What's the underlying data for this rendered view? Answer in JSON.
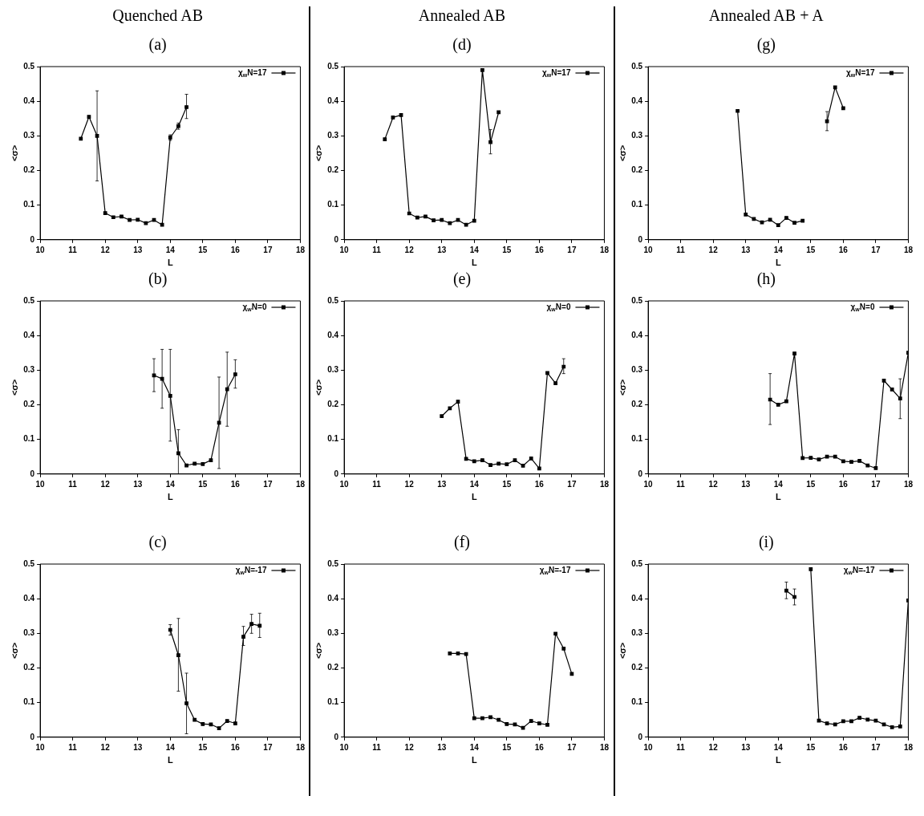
{
  "chart_data": [
    {
      "type": "line",
      "subtitle": "Quenched AB",
      "title": "(a)",
      "xlabel": "L",
      "ylabel": "<σ>",
      "xlim": [
        10,
        18
      ],
      "xticks": [
        10,
        11,
        12,
        13,
        14,
        15,
        16,
        17,
        18
      ],
      "ylim": [
        0,
        0.5
      ],
      "yticks": [
        0,
        0.1,
        0.2,
        0.3,
        0.4,
        0.5
      ],
      "legend": "top right",
      "marker": "square",
      "x": [
        11.25,
        11.5,
        11.75,
        12,
        12.25,
        12.5,
        12.75,
        13,
        13.25,
        13.5,
        13.75,
        14,
        14.25,
        14.5
      ],
      "series": [
        {
          "name": "χ$_{w}$N=17",
          "color": "#000000",
          "values": [
            0.292,
            0.355,
            0.3,
            0.077,
            0.065,
            0.067,
            0.057,
            0.058,
            0.048,
            0.057,
            0.043,
            0.295,
            0.328,
            0.383
          ],
          "errors": [
            null,
            null,
            [
              0.17,
              0.43
            ],
            null,
            null,
            null,
            null,
            null,
            null,
            null,
            null,
            [
              0.287,
              0.303
            ],
            [
              0.319,
              0.337
            ],
            [
              0.35,
              0.42
            ]
          ]
        }
      ]
    },
    {
      "type": "line",
      "title": "(b)",
      "xlabel": "L",
      "ylabel": "<σ>",
      "xlim": [
        10,
        18
      ],
      "xticks": [
        10,
        11,
        12,
        13,
        14,
        15,
        16,
        17,
        18
      ],
      "ylim": [
        0,
        0.5
      ],
      "yticks": [
        0,
        0.1,
        0.2,
        0.3,
        0.4,
        0.5
      ],
      "legend": "top right",
      "marker": "square",
      "x": [
        13.5,
        13.75,
        14,
        14.25,
        14.5,
        14.75,
        15,
        15.25,
        15.5,
        15.75,
        16
      ],
      "series": [
        {
          "name": "χ$_{w}$N=0",
          "color": "#000000",
          "values": [
            0.285,
            0.275,
            0.226,
            0.06,
            0.025,
            0.03,
            0.029,
            0.04,
            0.148,
            0.245,
            0.288
          ],
          "errors": [
            [
              0.238,
              0.333
            ],
            [
              0.19,
              0.36
            ],
            [
              0.095,
              0.36
            ],
            [
              0,
              0.128
            ],
            null,
            null,
            null,
            null,
            [
              0.016,
              0.28
            ],
            [
              0.138,
              0.352
            ],
            [
              0.248,
              0.33
            ]
          ]
        }
      ]
    },
    {
      "type": "line",
      "title": "(c)",
      "xlabel": "L",
      "ylabel": "<σ>",
      "xlim": [
        10,
        18
      ],
      "xticks": [
        10,
        11,
        12,
        13,
        14,
        15,
        16,
        17,
        18
      ],
      "ylim": [
        0,
        0.5
      ],
      "yticks": [
        0,
        0.1,
        0.2,
        0.3,
        0.4,
        0.5
      ],
      "legend": "top right",
      "marker": "square",
      "x": [
        14,
        14.25,
        14.5,
        14.75,
        15,
        15.25,
        15.5,
        15.75,
        16,
        16.25,
        16.5,
        16.75
      ],
      "series": [
        {
          "name": "χ$_{w}$N=-17",
          "color": "#000000",
          "values": [
            0.31,
            0.237,
            0.098,
            0.05,
            0.038,
            0.037,
            0.026,
            0.047,
            0.04,
            0.29,
            0.327,
            0.322
          ],
          "errors": [
            [
              0.295,
              0.325
            ],
            [
              0.133,
              0.343
            ],
            [
              0.01,
              0.185
            ],
            null,
            null,
            null,
            null,
            null,
            null,
            [
              0.265,
              0.32
            ],
            [
              0.3,
              0.355
            ],
            [
              0.288,
              0.358
            ]
          ]
        }
      ]
    },
    {
      "type": "line",
      "subtitle": "Annealed AB",
      "title": "(d)",
      "xlabel": "L",
      "ylabel": "<σ>",
      "xlim": [
        10,
        18
      ],
      "xticks": [
        10,
        11,
        12,
        13,
        14,
        15,
        16,
        17,
        18
      ],
      "ylim": [
        0,
        0.5
      ],
      "yticks": [
        0,
        0.1,
        0.2,
        0.3,
        0.4,
        0.5
      ],
      "legend": "top right",
      "marker": "square",
      "x": [
        11.25,
        11.5,
        11.75,
        12,
        12.25,
        12.5,
        12.75,
        13,
        13.25,
        13.5,
        13.75,
        14,
        14.25,
        14.5,
        14.75
      ],
      "series": [
        {
          "name": "χ$_{w}$N=17",
          "color": "#000000",
          "values": [
            0.29,
            0.353,
            0.36,
            0.076,
            0.064,
            0.067,
            0.056,
            0.057,
            0.048,
            0.057,
            0.043,
            0.055,
            0.49,
            0.282,
            0.368
          ],
          "errors": [
            null,
            null,
            null,
            null,
            null,
            null,
            null,
            null,
            null,
            null,
            null,
            null,
            null,
            [
              0.248,
              0.318
            ],
            null
          ]
        }
      ]
    },
    {
      "type": "line",
      "title": "(e)",
      "xlabel": "L",
      "ylabel": "<σ>",
      "xlim": [
        10,
        18
      ],
      "xticks": [
        10,
        11,
        12,
        13,
        14,
        15,
        16,
        17,
        18
      ],
      "ylim": [
        0,
        0.5
      ],
      "yticks": [
        0,
        0.1,
        0.2,
        0.3,
        0.4,
        0.5
      ],
      "legend": "top right",
      "marker": "square",
      "x": [
        13,
        13.25,
        13.5,
        13.75,
        14,
        14.25,
        14.5,
        14.75,
        15,
        15.25,
        15.5,
        15.75,
        16,
        16.25,
        16.5,
        16.75
      ],
      "series": [
        {
          "name": "χ$_{w}$N=0",
          "color": "#000000",
          "values": [
            0.167,
            0.19,
            0.209,
            0.044,
            0.037,
            0.04,
            0.026,
            0.03,
            0.028,
            0.04,
            0.024,
            0.045,
            0.016,
            0.292,
            0.262,
            0.31
          ],
          "errors": [
            null,
            null,
            null,
            null,
            null,
            null,
            null,
            null,
            null,
            null,
            null,
            null,
            null,
            null,
            null,
            [
              0.29,
              0.333
            ]
          ]
        }
      ]
    },
    {
      "type": "line",
      "title": "(f)",
      "xlabel": "L",
      "ylabel": "<σ>",
      "xlim": [
        10,
        18
      ],
      "xticks": [
        10,
        11,
        12,
        13,
        14,
        15,
        16,
        17,
        18
      ],
      "ylim": [
        0,
        0.5
      ],
      "yticks": [
        0,
        0.1,
        0.2,
        0.3,
        0.4,
        0.5
      ],
      "legend": "top right",
      "marker": "square",
      "x": [
        13.25,
        13.5,
        13.75,
        14,
        14.25,
        14.5,
        14.75,
        15,
        15.25,
        15.5,
        15.75,
        16,
        16.25,
        16.5,
        16.75,
        17
      ],
      "series": [
        {
          "name": "χ$_{w}$N=-17",
          "color": "#000000",
          "values": [
            0.242,
            0.242,
            0.24,
            0.055,
            0.055,
            0.058,
            0.05,
            0.038,
            0.037,
            0.027,
            0.047,
            0.04,
            0.036,
            0.299,
            0.256,
            0.183
          ]
        }
      ]
    },
    {
      "type": "line",
      "subtitle": "Annealed AB + A",
      "title": "(g)",
      "xlabel": "L",
      "ylabel": "<σ>",
      "xlim": [
        10,
        18
      ],
      "xticks": [
        10,
        11,
        12,
        13,
        14,
        15,
        16,
        17,
        18
      ],
      "ylim": [
        0,
        0.5
      ],
      "yticks": [
        0,
        0.1,
        0.2,
        0.3,
        0.4,
        0.5
      ],
      "legend": "top right",
      "marker": "square",
      "x": [
        12.75,
        13,
        13.25,
        13.5,
        13.75,
        14,
        14.25,
        14.5,
        14.75,
        15,
        15.25,
        15.5,
        15.75,
        16
      ],
      "series": [
        {
          "name": "χ$_{w}$N=17",
          "color": "#000000",
          "values": [
            0.372,
            0.073,
            0.06,
            0.05,
            0.058,
            0.042,
            0.063,
            0.049,
            0.055,
            null,
            null,
            0.342,
            0.44,
            0.38
          ],
          "errors": [
            null,
            null,
            null,
            null,
            null,
            null,
            null,
            null,
            null,
            null,
            null,
            [
              0.315,
              0.37
            ],
            null,
            null
          ]
        }
      ]
    },
    {
      "type": "line",
      "title": "(h)",
      "xlabel": "L",
      "ylabel": "<σ>",
      "xlim": [
        10,
        18
      ],
      "xticks": [
        10,
        11,
        12,
        13,
        14,
        15,
        16,
        17,
        18
      ],
      "ylim": [
        0,
        0.5
      ],
      "yticks": [
        0,
        0.1,
        0.2,
        0.3,
        0.4,
        0.5
      ],
      "legend": "top right",
      "marker": "square",
      "x": [
        13.75,
        14,
        14.25,
        14.5,
        14.75,
        15,
        15.25,
        15.5,
        15.75,
        16,
        16.25,
        16.5,
        16.75,
        17,
        17.25,
        17.5,
        17.75,
        18
      ],
      "series": [
        {
          "name": "χ$_{w}$N=0",
          "color": "#000000",
          "values": [
            0.215,
            0.2,
            0.21,
            0.348,
            0.046,
            0.047,
            0.042,
            0.05,
            0.05,
            0.037,
            0.035,
            0.038,
            0.025,
            0.017,
            0.27,
            0.244,
            0.218,
            0.35
          ],
          "errors": [
            [
              0.143,
              0.29
            ],
            null,
            null,
            null,
            null,
            null,
            null,
            null,
            null,
            null,
            null,
            null,
            null,
            null,
            null,
            null,
            [
              0.16,
              0.275
            ],
            null
          ]
        }
      ]
    },
    {
      "type": "line",
      "title": "(i)",
      "xlabel": "L",
      "ylabel": "<σ>",
      "xlim": [
        10,
        18
      ],
      "xticks": [
        10,
        11,
        12,
        13,
        14,
        15,
        16,
        17,
        18
      ],
      "ylim": [
        0,
        0.5
      ],
      "yticks": [
        0,
        0.1,
        0.2,
        0.3,
        0.4,
        0.5
      ],
      "legend": "top right",
      "marker": "square",
      "x": [
        14.25,
        14.5,
        14.75,
        15,
        15.25,
        15.5,
        15.75,
        16,
        16.25,
        16.5,
        16.75,
        17,
        17.25,
        17.5,
        17.75,
        18
      ],
      "series": [
        {
          "name": "χ$_{w}$N=-17",
          "color": "#000000",
          "values": [
            0.423,
            0.405,
            null,
            0.485,
            0.048,
            0.04,
            0.037,
            0.046,
            0.046,
            0.056,
            0.051,
            0.048,
            0.037,
            0.029,
            0.031,
            0.395
          ],
          "errors": [
            [
              0.4,
              0.448
            ],
            [
              0.382,
              0.428
            ],
            null,
            null,
            null,
            null,
            null,
            null,
            null,
            null,
            null,
            null,
            null,
            null,
            null,
            null
          ]
        }
      ]
    }
  ]
}
